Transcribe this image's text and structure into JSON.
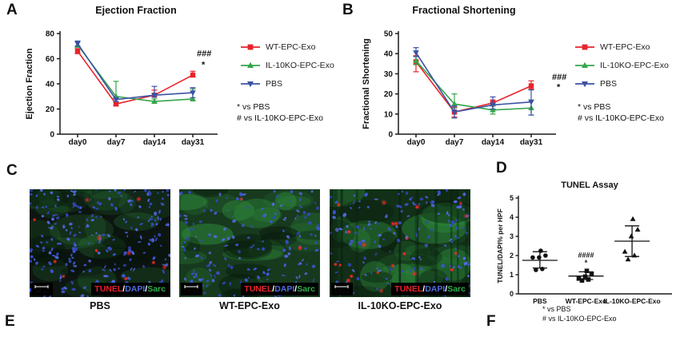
{
  "panel_labels": {
    "a": "A",
    "b": "B",
    "c": "C",
    "d": "D",
    "e": "E",
    "f": "F"
  },
  "chart_data": [
    {
      "id": "ejection-fraction",
      "type": "line",
      "title": "Ejection Fraction",
      "xlabel": "",
      "ylabel": "Ejection Fraction",
      "ylim": [
        0,
        80
      ],
      "yticks": [
        0,
        20,
        40,
        60,
        80
      ],
      "categories": [
        "day0",
        "day7",
        "day14",
        "day31"
      ],
      "legend_position": "right",
      "series": [
        {
          "name": "WT-EPC-Exo",
          "color": "#e8232b",
          "marker": "square",
          "values": [
            66,
            24,
            31,
            47
          ],
          "err_up": [
            2,
            1.5,
            4,
            3
          ],
          "err_dn": [
            2,
            1.5,
            1.5,
            1.5
          ]
        },
        {
          "name": "IL-10KO-EPC-Exo",
          "color": "#35a64b",
          "marker": "triangle-up",
          "values": [
            71,
            30,
            26,
            28
          ],
          "err_up": [
            3,
            12,
            2,
            8
          ],
          "err_dn": [
            2,
            2,
            1.5,
            1.5
          ]
        },
        {
          "name": "PBS",
          "color": "#3b53a5",
          "marker": "triangle-down",
          "values": [
            72,
            27.5,
            31,
            33
          ],
          "err_up": [
            2,
            1.5,
            7,
            4
          ],
          "err_dn": [
            2,
            1.5,
            1.5,
            4
          ]
        }
      ],
      "annotations": [
        {
          "text": "###",
          "y": 62,
          "color": "#e8232b"
        },
        {
          "text": "*",
          "y": 53,
          "color": "#e8232b"
        }
      ],
      "notes": [
        "* vs PBS",
        "# vs IL-10KO-EPC-Exo"
      ]
    },
    {
      "id": "fractional-shortening",
      "type": "line",
      "title": "Fractional Shortening",
      "xlabel": "",
      "ylabel": "Fractional Shortening",
      "ylim": [
        0,
        50
      ],
      "yticks": [
        0,
        10,
        20,
        30,
        40,
        50
      ],
      "categories": [
        "day0",
        "day7",
        "day14",
        "day31"
      ],
      "legend_position": "right",
      "series": [
        {
          "name": "WT-EPC-Exo",
          "color": "#e8232b",
          "marker": "square",
          "values": [
            36,
            11,
            15.5,
            24
          ],
          "err_up": [
            3,
            2.5,
            1.5,
            2.5
          ],
          "err_dn": [
            5,
            2.5,
            1.5,
            1.5
          ]
        },
        {
          "name": "IL-10KO-EPC-Exo",
          "color": "#35a64b",
          "marker": "triangle-up",
          "values": [
            36.5,
            15,
            12,
            13
          ],
          "err_up": [
            2,
            5,
            2,
            4
          ],
          "err_dn": [
            2,
            2,
            2,
            3.5
          ]
        },
        {
          "name": "PBS",
          "color": "#3b53a5",
          "marker": "triangle-down",
          "values": [
            40.5,
            11,
            14.5,
            16
          ],
          "err_up": [
            2.5,
            3,
            4,
            6
          ],
          "err_dn": [
            2,
            3,
            2,
            6.5
          ]
        }
      ],
      "annotations": [
        {
          "text": "###",
          "y": 27,
          "color": "#e8232b"
        },
        {
          "text": "*",
          "y": 22,
          "color": "#e8232b"
        }
      ],
      "notes": [
        "* vs PBS",
        "# vs IL-10KO-EPC-Exo"
      ]
    },
    {
      "id": "tunel-assay",
      "type": "scatter",
      "title": "TUNEL Assay",
      "xlabel": "",
      "ylabel": "TUNEL/DAPI% per HPF",
      "ylim": [
        0,
        5
      ],
      "yticks": [
        0,
        1,
        2,
        3,
        4,
        5
      ],
      "groups": [
        {
          "name": "PBS",
          "marker": "circle",
          "color": "#111111",
          "values": [
            1.25,
            1.3,
            1.9,
            1.9,
            2.0,
            2.25
          ],
          "mean": 1.75,
          "err": [
            1.35,
            2.2
          ],
          "annotations": []
        },
        {
          "name": "WT-EPC-Exo",
          "marker": "square",
          "color": "#111111",
          "values": [
            0.7,
            0.75,
            0.8,
            0.9,
            1.05,
            1.2
          ],
          "mean": 0.93,
          "err": [
            0.75,
            1.15
          ],
          "annotations": [
            {
              "text": "####",
              "y": 1.9
            },
            {
              "text": "*",
              "y": 1.5
            }
          ]
        },
        {
          "name": "IL-10KO-EPC-Exo",
          "marker": "triangle-up",
          "color": "#111111",
          "values": [
            1.8,
            2.0,
            2.2,
            3.0,
            3.35,
            3.9
          ],
          "mean": 2.75,
          "err": [
            1.95,
            3.55
          ],
          "annotations": []
        }
      ],
      "notes": [
        "* vs PBS",
        "# vs IL-10KO-EPC-Exo"
      ]
    }
  ],
  "micrographs": {
    "scale_label": "100 μm",
    "stain_label_parts": [
      {
        "text": "TUNEL",
        "color": "#e8232b"
      },
      {
        "text": "/",
        "color": "#ffffff"
      },
      {
        "text": "DAPI",
        "color": "#4d6de0"
      },
      {
        "text": "/",
        "color": "#ffffff"
      },
      {
        "text": "Sarc",
        "color": "#2eb34d"
      }
    ],
    "items": [
      {
        "caption": "PBS",
        "seed": 11,
        "base": "#0c1510",
        "green_level": 0.5,
        "striated": false,
        "nuclei": 250,
        "tunel_spots": 13
      },
      {
        "caption": "WT-EPC-Exo",
        "seed": 22,
        "base": "#173a1e",
        "green_level": 1.0,
        "striated": false,
        "nuclei": 180,
        "tunel_spots": 2
      },
      {
        "caption": "IL-10KO-EPC-Exo",
        "seed": 33,
        "base": "#123017",
        "green_level": 0.85,
        "striated": true,
        "nuclei": 150,
        "tunel_spots": 22
      }
    ]
  }
}
